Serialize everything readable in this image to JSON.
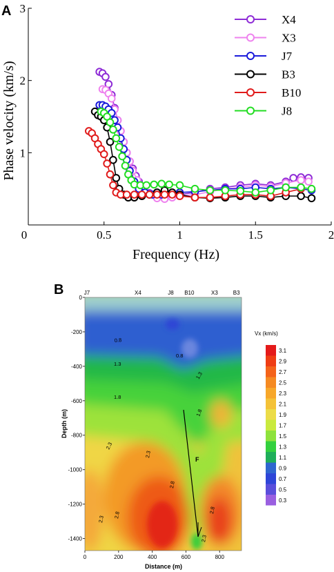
{
  "chart_data": [
    {
      "type": "scatter",
      "panel": "A",
      "xlabel": "Frequency (Hz)",
      "ylabel": "Phase velocity (km/s)",
      "xlim": [
        0,
        2
      ],
      "ylim": [
        0,
        3
      ],
      "x_ticks": [
        "0",
        "0.5",
        "1",
        "1.5",
        "2"
      ],
      "y_ticks": [
        "1",
        "2",
        "3"
      ],
      "legend_position": "top-right",
      "series": [
        {
          "name": "X4",
          "color": "#8e2bd6",
          "x": [
            0.47,
            0.49,
            0.51,
            0.53,
            0.55,
            0.57,
            0.59,
            0.61,
            0.63,
            0.65,
            0.67,
            0.69,
            0.71,
            0.73,
            0.76,
            0.8,
            0.85,
            0.9,
            0.95,
            1.0,
            1.1,
            1.2,
            1.3,
            1.4,
            1.5,
            1.6,
            1.7,
            1.75,
            1.8,
            1.85
          ],
          "y": [
            2.12,
            2.1,
            2.05,
            1.95,
            1.8,
            1.62,
            1.45,
            1.3,
            1.15,
            1.0,
            0.88,
            0.78,
            0.68,
            0.6,
            0.5,
            0.44,
            0.4,
            0.38,
            0.4,
            0.42,
            0.45,
            0.5,
            0.52,
            0.55,
            0.57,
            0.55,
            0.6,
            0.65,
            0.66,
            0.65
          ]
        },
        {
          "name": "X3",
          "color": "#ee82ee",
          "x": [
            0.49,
            0.51,
            0.53,
            0.55,
            0.57,
            0.59,
            0.61,
            0.63,
            0.65,
            0.67,
            0.69,
            0.72,
            0.75,
            0.8,
            0.85,
            0.9,
            0.95,
            1.0,
            1.1,
            1.2,
            1.3,
            1.4,
            1.5,
            1.6,
            1.7,
            1.8,
            1.85
          ],
          "y": [
            1.88,
            1.87,
            1.82,
            1.75,
            1.6,
            1.45,
            1.3,
            1.15,
            1.0,
            0.88,
            0.75,
            0.62,
            0.52,
            0.42,
            0.37,
            0.36,
            0.38,
            0.4,
            0.42,
            0.46,
            0.5,
            0.52,
            0.55,
            0.53,
            0.58,
            0.62,
            0.6
          ]
        },
        {
          "name": "J7",
          "color": "#1a1adb",
          "x": [
            0.47,
            0.49,
            0.51,
            0.53,
            0.55,
            0.57,
            0.59,
            0.61,
            0.63,
            0.65,
            0.67,
            0.7,
            0.73,
            0.77,
            0.82,
            0.88,
            0.95,
            1.0,
            1.1,
            1.2,
            1.3,
            1.4,
            1.5,
            1.6,
            1.7,
            1.8,
            1.87
          ],
          "y": [
            1.66,
            1.66,
            1.64,
            1.6,
            1.55,
            1.45,
            1.35,
            1.2,
            1.05,
            0.9,
            0.75,
            0.6,
            0.5,
            0.45,
            0.42,
            0.42,
            0.43,
            0.45,
            0.46,
            0.48,
            0.5,
            0.5,
            0.52,
            0.5,
            0.52,
            0.5,
            0.48
          ]
        },
        {
          "name": "B3",
          "color": "#000000",
          "x": [
            0.44,
            0.46,
            0.48,
            0.5,
            0.52,
            0.54,
            0.56,
            0.58,
            0.6,
            0.63,
            0.66,
            0.7,
            0.75,
            0.8,
            0.85,
            0.9,
            0.95,
            1.0,
            1.1,
            1.2,
            1.3,
            1.4,
            1.5,
            1.6,
            1.7,
            1.8,
            1.87
          ],
          "y": [
            1.57,
            1.52,
            1.5,
            1.45,
            1.35,
            1.15,
            0.9,
            0.65,
            0.5,
            0.42,
            0.38,
            0.38,
            0.4,
            0.42,
            0.45,
            0.48,
            0.45,
            0.42,
            0.38,
            0.37,
            0.38,
            0.4,
            0.4,
            0.38,
            0.4,
            0.4,
            0.37
          ]
        },
        {
          "name": "B10",
          "color": "#e01a1a",
          "x": [
            0.4,
            0.42,
            0.44,
            0.46,
            0.48,
            0.5,
            0.52,
            0.54,
            0.56,
            0.58,
            0.61,
            0.65,
            0.7,
            0.75,
            0.8,
            0.85,
            0.9,
            0.95,
            1.0,
            1.1,
            1.2,
            1.3,
            1.4,
            1.5,
            1.6,
            1.7,
            1.8
          ],
          "y": [
            1.3,
            1.27,
            1.2,
            1.12,
            1.05,
            0.98,
            0.85,
            0.7,
            0.55,
            0.45,
            0.42,
            0.42,
            0.42,
            0.42,
            0.42,
            0.42,
            0.42,
            0.42,
            0.4,
            0.38,
            0.38,
            0.4,
            0.42,
            0.42,
            0.4,
            0.45,
            0.5
          ]
        },
        {
          "name": "J8",
          "color": "#22dd22",
          "x": [
            0.48,
            0.5,
            0.52,
            0.54,
            0.56,
            0.58,
            0.6,
            0.62,
            0.64,
            0.66,
            0.68,
            0.7,
            0.74,
            0.78,
            0.83,
            0.88,
            0.93,
            1.0,
            1.1,
            1.2,
            1.3,
            1.4,
            1.5,
            1.6,
            1.7,
            1.8,
            1.87
          ],
          "y": [
            1.57,
            1.55,
            1.5,
            1.42,
            1.32,
            1.2,
            1.08,
            0.95,
            0.82,
            0.7,
            0.62,
            0.56,
            0.55,
            0.55,
            0.56,
            0.57,
            0.56,
            0.55,
            0.5,
            0.48,
            0.48,
            0.47,
            0.45,
            0.48,
            0.52,
            0.52,
            0.5
          ]
        }
      ]
    },
    {
      "type": "heatmap",
      "panel": "B",
      "xlabel": "Distance (m)",
      "ylabel": "Depth (m)",
      "xlim": [
        0,
        930
      ],
      "ylim": [
        -1470,
        0
      ],
      "x_ticks": [
        "0",
        "200",
        "400",
        "600",
        "800"
      ],
      "y_ticks": [
        "0",
        "-200",
        "-400",
        "-600",
        "-800",
        "-1000",
        "-1200",
        "-1400"
      ],
      "stations": [
        {
          "name": "J7",
          "x": 0
        },
        {
          "name": "X4",
          "x": 315
        },
        {
          "name": "J8",
          "x": 510
        },
        {
          "name": "B10",
          "x": 620
        },
        {
          "name": "X3",
          "x": 770
        },
        {
          "name": "B3",
          "x": 900
        }
      ],
      "colorbar": {
        "title": "Vx (km/s)",
        "labels": [
          "3.1",
          "2.9",
          "2.7",
          "2.5",
          "2.3",
          "2.1",
          "1.9",
          "1.7",
          "1.5",
          "1.3",
          "1.1",
          "0.9",
          "0.7",
          "0.5",
          "0.3"
        ],
        "colors": [
          "#e41a1a",
          "#ef3d14",
          "#f4631a",
          "#f58a22",
          "#f7a72a",
          "#f4c238",
          "#ecdc48",
          "#c9ea3e",
          "#8ee23c",
          "#33d03e",
          "#1fae5a",
          "#2f66cf",
          "#2e45d8",
          "#5a4edb",
          "#9a5fe0"
        ]
      },
      "contour_labels": [
        "0.8",
        "0.8",
        "1.3",
        "1.3",
        "1.8",
        "1.8",
        "2.3",
        "2.3",
        "2.8",
        "2.8",
        "2.3",
        "2.8",
        "2.3"
      ],
      "fault_label": "F"
    }
  ]
}
